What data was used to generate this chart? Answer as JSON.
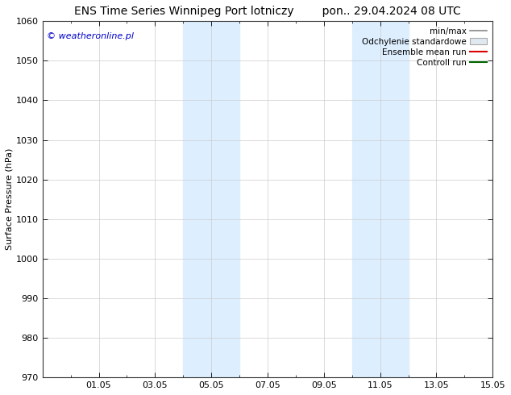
{
  "title": "ENS Time Series Winnipeg Port lotniczy",
  "title_right": "pon.. 29.04.2024 08 UTC",
  "ylabel": "Surface Pressure (hPa)",
  "ylim": [
    970,
    1060
  ],
  "yticks": [
    970,
    980,
    990,
    1000,
    1010,
    1020,
    1030,
    1040,
    1050,
    1060
  ],
  "xtick_labels": [
    "01.05",
    "03.05",
    "05.05",
    "07.05",
    "09.05",
    "11.05",
    "13.05",
    "15.05"
  ],
  "xtick_positions": [
    3,
    5,
    7,
    9,
    11,
    13,
    15,
    17
  ],
  "xlim": [
    1,
    17
  ],
  "shaded_bands": [
    {
      "x_start": 6,
      "x_end": 7,
      "color": "#ddeeff"
    },
    {
      "x_start": 7,
      "x_end": 8,
      "color": "#ddeeff"
    },
    {
      "x_start": 12,
      "x_end": 13,
      "color": "#ddeeff"
    },
    {
      "x_start": 13,
      "x_end": 14,
      "color": "#ddeeff"
    }
  ],
  "watermark": "© weatheronline.pl",
  "watermark_color": "#0000cc",
  "legend_entries": [
    "min/max",
    "Odchylenie standardowe",
    "Ensemble mean run",
    "Controll run"
  ],
  "legend_line_colors": [
    "#888888",
    "#cccccc",
    "#dd0000",
    "#006600"
  ],
  "background_color": "#ffffff",
  "grid_color": "#cccccc",
  "title_fontsize": 10,
  "tick_fontsize": 8,
  "ylabel_fontsize": 8
}
